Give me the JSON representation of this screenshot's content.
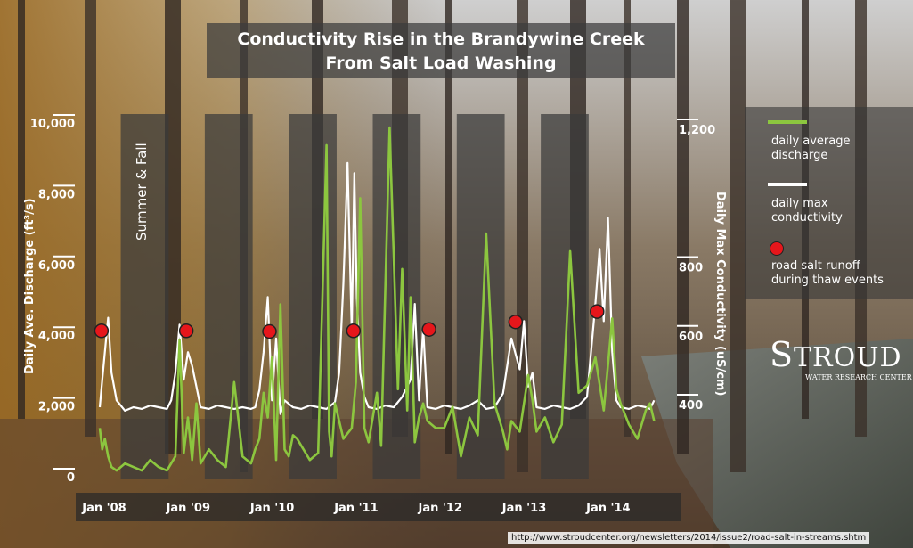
{
  "source_url": "http://www.stroudcenter.org/newsletters/2014/issue2/road-salt-in-streams.shtm",
  "legend": {
    "discharge_line1": "daily average",
    "discharge_line2": "discharge",
    "conductivity_line1": "daily max",
    "conductivity_line2": "conductivity",
    "salt_line1": "road salt runoff",
    "salt_line2": "during thaw events"
  },
  "logo_text": {
    "main": "STROUD",
    "sub": "WATER RESEARCH CENTER"
  },
  "colors": {
    "discharge": "#8cc63f",
    "conductivity": "#ffffff",
    "salt_event": "#e6161b",
    "band": "#3a3a3a"
  },
  "chart_data": {
    "type": "line",
    "title_line1": "Conductivity Rise in the Brandywine Creek",
    "title_line2": "From Salt Load Washing",
    "title": "Conductivity Rise in the Brandywine Creek From Salt Load Washing",
    "ylabel_left": "Daily Ave. Discharge (ft³/s)",
    "ylabel_right": "Daily Max Conductivity (uS/cm)",
    "season_label": "Summer & Fall",
    "x_tick_labels": [
      "Jan '08",
      "Jan '09",
      "Jan '10",
      "Jan '11",
      "Jan '12",
      "Jan '13",
      "Jan '14"
    ],
    "x_range": [
      2008.0,
      2014.8
    ],
    "left_axis": {
      "ticks": [
        0,
        2000,
        4000,
        6000,
        8000,
        10000
      ],
      "tick_labels": [
        "0",
        "2,000",
        "4,000",
        "6,000",
        "8,000",
        "10,000"
      ],
      "range": [
        0,
        10000
      ]
    },
    "right_axis": {
      "ticks": [
        400,
        600,
        800,
        1200
      ],
      "tick_labels": [
        "400",
        "600",
        "800",
        "1,200"
      ],
      "range": [
        240,
        1280
      ]
    },
    "grid": false,
    "legend_position": "right",
    "season_bands": [
      {
        "label": "Summer & Fall",
        "start": 2008.25,
        "end": 2008.82
      },
      {
        "start": 2009.25,
        "end": 2009.82
      },
      {
        "start": 2010.25,
        "end": 2010.82
      },
      {
        "start": 2011.25,
        "end": 2011.82
      },
      {
        "start": 2012.25,
        "end": 2012.82
      },
      {
        "start": 2013.25,
        "end": 2013.82
      }
    ],
    "series": [
      {
        "name": "daily average discharge",
        "axis": "left",
        "x": [
          2008.0,
          2008.03,
          2008.06,
          2008.1,
          2008.14,
          2008.2,
          2008.3,
          2008.4,
          2008.5,
          2008.6,
          2008.7,
          2008.8,
          2008.9,
          2008.95,
          2009.0,
          2009.05,
          2009.1,
          2009.15,
          2009.2,
          2009.3,
          2009.4,
          2009.5,
          2009.6,
          2009.7,
          2009.8,
          2009.85,
          2009.9,
          2009.95,
          2010.0,
          2010.05,
          2010.1,
          2010.15,
          2010.2,
          2010.25,
          2010.3,
          2010.35,
          2010.4,
          2010.5,
          2010.6,
          2010.7,
          2010.73,
          2010.76,
          2010.8,
          2010.9,
          2011.0,
          2011.05,
          2011.1,
          2011.15,
          2011.2,
          2011.3,
          2011.35,
          2011.45,
          2011.55,
          2011.6,
          2011.66,
          2011.7,
          2011.75,
          2011.8,
          2011.85,
          2011.9,
          2012.0,
          2012.1,
          2012.2,
          2012.3,
          2012.4,
          2012.5,
          2012.6,
          2012.7,
          2012.8,
          2012.85,
          2012.9,
          2013.0,
          2013.1,
          2013.15,
          2013.2,
          2013.3,
          2013.4,
          2013.5,
          2013.6,
          2013.7,
          2013.8,
          2013.9,
          2014.0,
          2014.05,
          2014.1,
          2014.15,
          2014.2,
          2014.3,
          2014.4,
          2014.5,
          2014.55,
          2014.6
        ],
        "y": [
          1500,
          900,
          1200,
          700,
          400,
          300,
          500,
          400,
          300,
          600,
          400,
          300,
          700,
          4000,
          800,
          1800,
          600,
          2200,
          500,
          900,
          600,
          400,
          2800,
          700,
          500,
          900,
          1200,
          2500,
          1800,
          3500,
          600,
          5000,
          900,
          700,
          1300,
          1200,
          1000,
          600,
          800,
          9500,
          1400,
          700,
          2200,
          1200,
          1500,
          2800,
          8000,
          1500,
          1100,
          2500,
          1000,
          10000,
          2600,
          6000,
          2000,
          5200,
          1100,
          1800,
          2200,
          1700,
          1500,
          1500,
          2100,
          700,
          1800,
          1300,
          7000,
          2200,
          1400,
          900,
          1700,
          1400,
          3000,
          2300,
          1400,
          1800,
          1100,
          1600,
          6500,
          2500,
          2700,
          3500,
          2000,
          3300,
          4600,
          2600,
          2200,
          1600,
          1200,
          2000,
          2200,
          1700
        ]
      },
      {
        "name": "daily max conductivity",
        "axis": "right",
        "x": [
          2008.0,
          2008.03,
          2008.06,
          2008.1,
          2008.14,
          2008.2,
          2008.3,
          2008.4,
          2008.5,
          2008.6,
          2008.7,
          2008.8,
          2008.85,
          2008.9,
          2008.95,
          2009.0,
          2009.05,
          2009.1,
          2009.15,
          2009.2,
          2009.3,
          2009.4,
          2009.5,
          2009.6,
          2009.7,
          2009.8,
          2009.85,
          2009.9,
          2009.95,
          2010.0,
          2010.05,
          2010.1,
          2010.15,
          2010.2,
          2010.3,
          2010.4,
          2010.5,
          2010.6,
          2010.7,
          2010.8,
          2010.85,
          2010.9,
          2010.95,
          2011.0,
          2011.03,
          2011.06,
          2011.1,
          2011.15,
          2011.2,
          2011.3,
          2011.4,
          2011.5,
          2011.6,
          2011.7,
          2011.75,
          2011.8,
          2011.85,
          2011.9,
          2012.0,
          2012.1,
          2012.2,
          2012.3,
          2012.4,
          2012.5,
          2012.6,
          2012.7,
          2012.8,
          2012.9,
          2013.0,
          2013.05,
          2013.1,
          2013.15,
          2013.2,
          2013.3,
          2013.4,
          2013.5,
          2013.6,
          2013.7,
          2013.8,
          2013.9,
          2013.95,
          2014.0,
          2014.05,
          2014.1,
          2014.15,
          2014.2,
          2014.3,
          2014.4,
          2014.5,
          2014.55,
          2014.6
        ],
        "y": [
          400,
          480,
          560,
          660,
          500,
          420,
          390,
          400,
          395,
          405,
          400,
          395,
          420,
          500,
          640,
          480,
          560,
          520,
          460,
          400,
          395,
          405,
          400,
          395,
          400,
          395,
          400,
          450,
          560,
          720,
          420,
          600,
          380,
          420,
          400,
          395,
          405,
          400,
          395,
          415,
          500,
          760,
          1110,
          620,
          1080,
          720,
          500,
          430,
          400,
          395,
          405,
          400,
          430,
          480,
          700,
          420,
          630,
          400,
          395,
          405,
          400,
          395,
          405,
          420,
          395,
          400,
          440,
          600,
          510,
          650,
          460,
          500,
          400,
          395,
          405,
          400,
          395,
          405,
          430,
          700,
          860,
          650,
          950,
          560,
          420,
          400,
          395,
          405,
          400,
          395,
          420
        ]
      }
    ],
    "salt_events": {
      "name": "road salt runoff during thaw events",
      "x": [
        2008.02,
        2009.03,
        2010.02,
        2011.02,
        2011.92,
        2012.95,
        2013.92
      ],
      "y": [
        622,
        622,
        620,
        622,
        626,
        648,
        678
      ]
    }
  }
}
